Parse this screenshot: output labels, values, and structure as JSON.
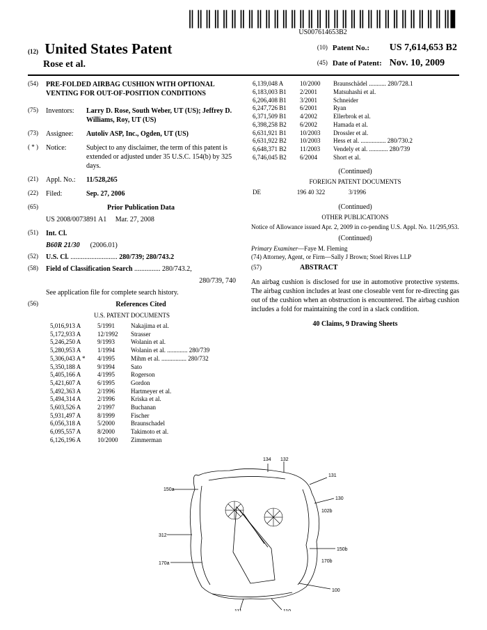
{
  "barcode_text": "US007614653B2",
  "header": {
    "doc_kind": "(12)",
    "main_title": "United States Patent",
    "authors": "Rose et al.",
    "patent_no_code": "(10)",
    "patent_no_label": "Patent No.:",
    "patent_no": "US 7,614,653 B2",
    "date_code": "(45)",
    "date_label": "Date of Patent:",
    "date": "Nov. 10, 2009"
  },
  "left": {
    "title_code": "(54)",
    "title": "PRE-FOLDED AIRBAG CUSHION WITH OPTIONAL VENTING FOR OUT-OF-POSITION CONDITIONS",
    "inventors_code": "(75)",
    "inventors_label": "Inventors:",
    "inventors": "Larry D. Rose, South Weber, UT (US); Jeffrey D. Williams, Roy, UT (US)",
    "assignee_code": "(73)",
    "assignee_label": "Assignee:",
    "assignee": "Autoliv ASP, Inc., Ogden, UT (US)",
    "notice_code": "( * )",
    "notice_label": "Notice:",
    "notice": "Subject to any disclaimer, the term of this patent is extended or adjusted under 35 U.S.C. 154(b) by 325 days.",
    "appl_code": "(21)",
    "appl_label": "Appl. No.:",
    "appl": "11/528,265",
    "filed_code": "(22)",
    "filed_label": "Filed:",
    "filed": "Sep. 27, 2006",
    "prior_code": "(65)",
    "prior_label": "Prior Publication Data",
    "prior_pub": "US 2008/0073891 A1",
    "prior_date": "Mar. 27, 2008",
    "intcl_code": "(51)",
    "intcl_label": "Int. Cl.",
    "intcl_class": "B60R 21/30",
    "intcl_date": "(2006.01)",
    "uscl_code": "(52)",
    "uscl_label": "U.S. Cl.",
    "uscl": "280/739; 280/743.2",
    "search_code": "(58)",
    "search_label": "Field of Classification Search",
    "search1": "280/743.2,",
    "search2": "280/739, 740",
    "search_note": "See application file for complete search history.",
    "refs_code": "(56)",
    "refs_label": "References Cited",
    "us_docs_label": "U.S. PATENT DOCUMENTS",
    "us_refs": [
      [
        "5,016,913 A",
        "5/1991",
        "Nakajima et al."
      ],
      [
        "5,172,933 A",
        "12/1992",
        "Strasser"
      ],
      [
        "5,246,250 A",
        "9/1993",
        "Wolanin et al."
      ],
      [
        "5,280,953 A",
        "1/1994",
        "Wolanin et al. ............. 280/739"
      ],
      [
        "5,306,043 A *",
        "4/1995",
        "Mihm et al. ................ 280/732"
      ],
      [
        "5,350,188 A",
        "9/1994",
        "Sato"
      ],
      [
        "5,405,166 A",
        "4/1995",
        "Rogerson"
      ],
      [
        "5,421,607 A",
        "6/1995",
        "Gordon"
      ],
      [
        "5,492,363 A",
        "2/1996",
        "Hartmeyer et al."
      ],
      [
        "5,494,314 A",
        "2/1996",
        "Kriska et al."
      ],
      [
        "5,603,526 A",
        "2/1997",
        "Buchanan"
      ],
      [
        "5,931,497 A",
        "8/1999",
        "Fischer"
      ],
      [
        "6,056,318 A",
        "5/2000",
        "Braunschadel"
      ],
      [
        "6,095,557 A",
        "8/2000",
        "Takimoto et al."
      ],
      [
        "6,126,196 A",
        "10/2000",
        "Zimmerman"
      ]
    ]
  },
  "right": {
    "us_refs2": [
      [
        "6,139,048 A",
        "10/2000",
        "Braunschädel ........... 280/728.1"
      ],
      [
        "6,183,003 B1",
        "2/2001",
        "Matsuhashi et al."
      ],
      [
        "6,206,408 B1",
        "3/2001",
        "Schneider"
      ],
      [
        "6,247,726 B1",
        "6/2001",
        "Ryan"
      ],
      [
        "6,371,509 B1",
        "4/2002",
        "Ellerbrok et al."
      ],
      [
        "6,398,258 B2",
        "6/2002",
        "Hamada et al."
      ],
      [
        "6,631,921 B1",
        "10/2003",
        "Drossler et al."
      ],
      [
        "6,631,922 B2",
        "10/2003",
        "Hess et al. ................ 280/730.2"
      ],
      [
        "6,648,371 B2",
        "11/2003",
        "Vendely et al. ............ 280/739"
      ],
      [
        "6,746,045 B2",
        "6/2004",
        "Short et al."
      ]
    ],
    "continued": "(Continued)",
    "foreign_label": "FOREIGN PATENT DOCUMENTS",
    "foreign": [
      "DE",
      "196 40 322",
      "3/1996"
    ],
    "other_label": "OTHER PUBLICATIONS",
    "other": "Notice of Allowance issued Apr. 2, 2009 in co-pending U.S. Appl. No. 11/295,953.",
    "examiner_label": "Primary Examiner",
    "examiner": "—Faye M. Fleming",
    "attorney_label": "(74) Attorney, Agent, or Firm",
    "attorney": "—Sally J Brown; Stoel Rives LLP",
    "abstract_code": "(57)",
    "abstract_label": "ABSTRACT",
    "abstract": "An airbag cushion is disclosed for use in automotive protective systems. The airbag cushion includes at least one closeable vent for re-directing gas out of the cushion when an obstruction is encountered. The airbag cushion includes a fold for maintaining the cord in a slack condition.",
    "claims": "40 Claims, 9 Drawing Sheets"
  }
}
